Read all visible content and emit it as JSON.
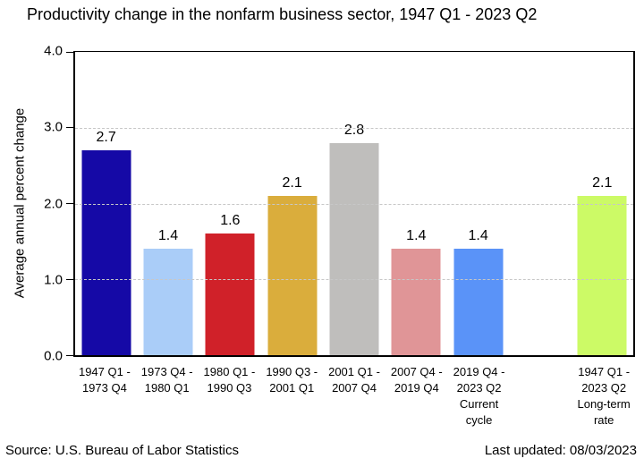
{
  "title": "Productivity change in the nonfarm business sector, 1947 Q1 - 2023 Q2",
  "footer": {
    "source": "Source: U.S. Bureau of Labor Statistics",
    "last_updated": "Last updated: 08/03/2023"
  },
  "chart_data": {
    "type": "bar",
    "title": "Productivity change in the nonfarm business sector, 1947 Q1 - 2023 Q2",
    "xlabel": "",
    "ylabel": "Average annual percent change",
    "ylim": [
      0,
      4
    ],
    "yticks": [
      0,
      1,
      2,
      3,
      4
    ],
    "ytick_labels": [
      "0.0",
      "1.0",
      "2.0",
      "3.0",
      "4.0"
    ],
    "grid": "horizontal dashed gridlines at 1.0, 2.0 and 3.0; solid black box border",
    "legend": "none",
    "value_labels_shown": true,
    "num_slots": 9,
    "categories": [
      "1947 Q1 - 1973 Q4",
      "1973 Q4 - 1980 Q1",
      "1980 Q1 - 1990 Q3",
      "1990 Q3 - 2001 Q1",
      "2001 Q1 - 2007 Q4",
      "2007 Q4 - 2019 Q4",
      "2019 Q4 - 2023 Q2 Current cycle",
      "1947 Q1 - 2023 Q2 Long-term rate"
    ],
    "values": [
      2.7,
      1.4,
      1.6,
      2.1,
      2.8,
      1.4,
      1.4,
      2.1
    ],
    "bars": [
      {
        "slot": 0,
        "value": 2.7,
        "value_label": "2.7",
        "color": "#1509a6",
        "label_lines": [
          "1947 Q1 -",
          "1973 Q4"
        ]
      },
      {
        "slot": 1,
        "value": 1.4,
        "value_label": "1.4",
        "color": "#aacdf8",
        "label_lines": [
          "1973 Q4 -",
          "1980 Q1"
        ]
      },
      {
        "slot": 2,
        "value": 1.6,
        "value_label": "1.6",
        "color": "#d02129",
        "label_lines": [
          "1980 Q1 -",
          "1990 Q3"
        ]
      },
      {
        "slot": 3,
        "value": 2.1,
        "value_label": "2.1",
        "color": "#daad3c",
        "label_lines": [
          "1990 Q3 -",
          "2001 Q1"
        ]
      },
      {
        "slot": 4,
        "value": 2.8,
        "value_label": "2.8",
        "color": "#bfbebc",
        "label_lines": [
          "2001 Q1 -",
          "2007 Q4"
        ]
      },
      {
        "slot": 5,
        "value": 1.4,
        "value_label": "1.4",
        "color": "#e09597",
        "label_lines": [
          "2007 Q4 -",
          "2019 Q4"
        ]
      },
      {
        "slot": 6,
        "value": 1.4,
        "value_label": "1.4",
        "color": "#5a93f8",
        "label_lines": [
          "2019 Q4 -",
          "2023 Q2",
          "Current",
          "cycle"
        ]
      },
      {
        "slot": 8,
        "value": 2.1,
        "value_label": "2.1",
        "color": "#ccfa66",
        "label_lines": [
          "1947 Q1 -",
          "2023 Q2",
          "Long-term",
          "rate"
        ]
      }
    ]
  }
}
